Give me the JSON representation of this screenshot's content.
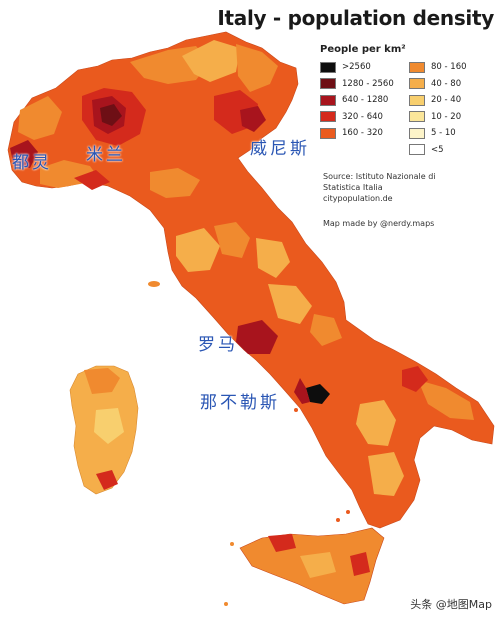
{
  "title": "Italy - population density",
  "legend": {
    "heading": "People per km²",
    "left_column": [
      {
        "label": ">2560",
        "color": "#0d0d0d"
      },
      {
        "label": "1280 - 2560",
        "color": "#6e0f15"
      },
      {
        "label": "640 - 1280",
        "color": "#a8141d"
      },
      {
        "label": "320 - 640",
        "color": "#d42a1c"
      },
      {
        "label": "160 - 320",
        "color": "#ea5a1e"
      }
    ],
    "right_column": [
      {
        "label": "80 - 160",
        "color": "#f08a2f"
      },
      {
        "label": "40 - 80",
        "color": "#f5ae4a"
      },
      {
        "label": "20 - 40",
        "color": "#f8cf6e"
      },
      {
        "label": "10 - 20",
        "color": "#fbe69a"
      },
      {
        "label": "5 - 10",
        "color": "#fdf4c9"
      },
      {
        "label": "<5",
        "color": "#ffffff"
      }
    ]
  },
  "source": {
    "line1": "Source: Istituto Nazionale di",
    "line2": "Statistica Italia",
    "line3": "citypopulation.de"
  },
  "credit": "Map made by @nerdy.maps",
  "city_labels": {
    "turin": "都灵",
    "milan": "米兰",
    "venice": "威尼斯",
    "rome": "罗马",
    "naples": "那不勒斯"
  },
  "watermark": "头条 @地图Map"
}
